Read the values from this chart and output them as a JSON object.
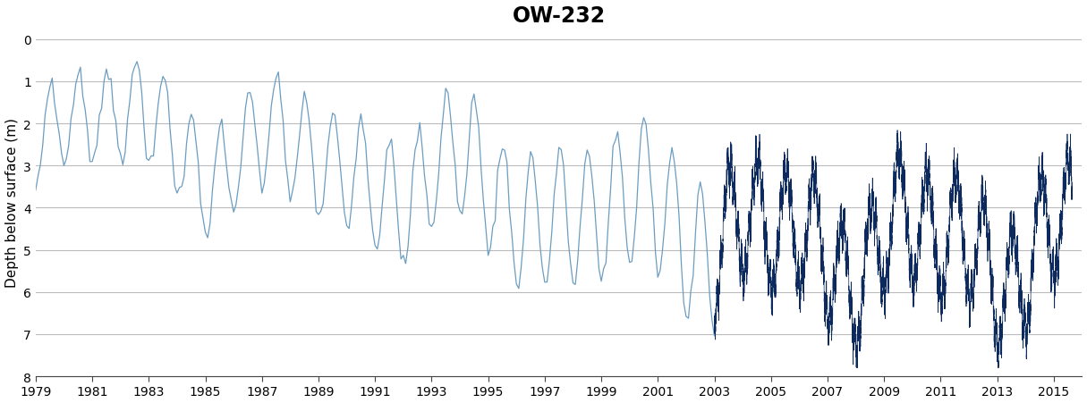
{
  "title": "OW-232",
  "ylabel": "Depth below surface (m)",
  "xlim": [
    1979,
    2016
  ],
  "ylim": [
    8.0,
    -0.25
  ],
  "yticks": [
    0,
    1,
    2,
    3,
    4,
    5,
    6,
    7,
    8
  ],
  "xticks": [
    1979,
    1981,
    1983,
    1985,
    1987,
    1989,
    1991,
    1993,
    1995,
    1997,
    1999,
    2001,
    2003,
    2005,
    2007,
    2009,
    2011,
    2013,
    2015
  ],
  "light_blue_color": "#6B9DC2",
  "dark_blue_color": "#0D2A5E",
  "grid_color": "#BBBBBB",
  "bg_color": "#FFFFFF",
  "title_fontsize": 17,
  "label_fontsize": 11,
  "tick_fontsize": 10,
  "transition_year": 2003.0
}
